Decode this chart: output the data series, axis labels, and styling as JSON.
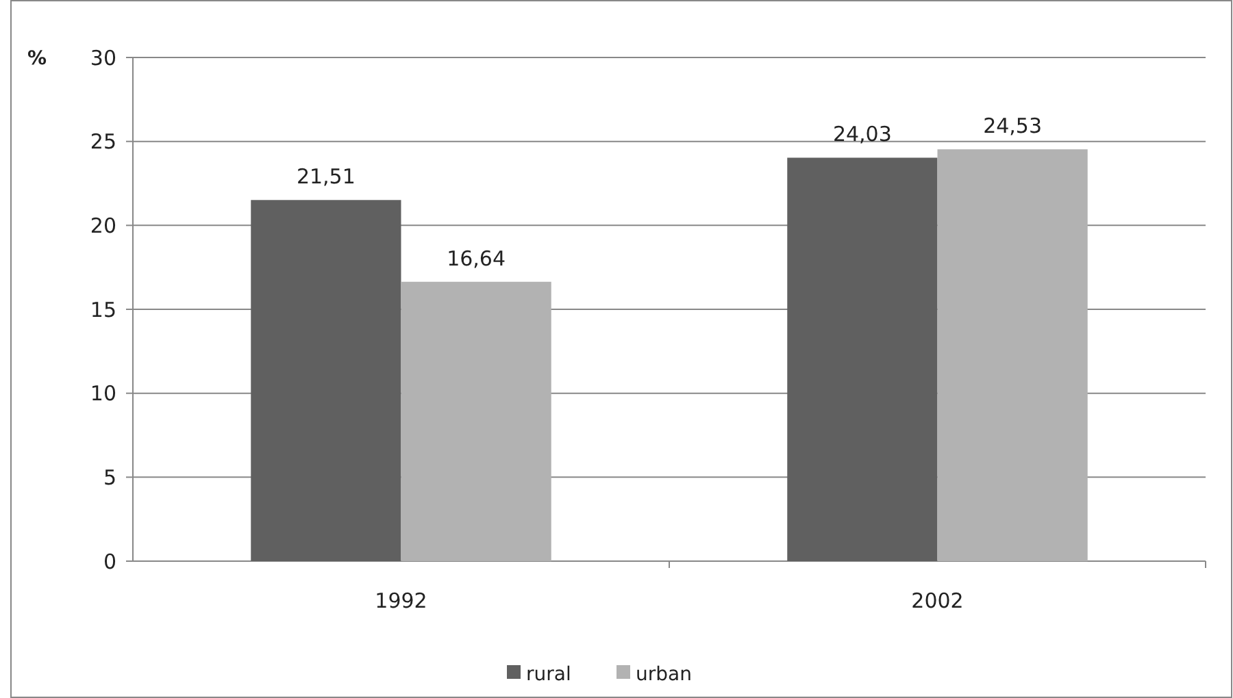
{
  "chart_data": {
    "type": "bar",
    "ylabel": "%",
    "categories": [
      "1992",
      "2002"
    ],
    "series": [
      {
        "name": "rural",
        "color": "#606060",
        "values": [
          21.51,
          24.03
        ],
        "value_labels": [
          "21,51",
          "24,03"
        ]
      },
      {
        "name": "urban",
        "color": "#b2b2b2",
        "values": [
          16.64,
          24.53
        ],
        "value_labels": [
          "16,64",
          "24,53"
        ]
      }
    ],
    "ylim": [
      0,
      30
    ],
    "yticks": [
      0,
      5,
      10,
      15,
      20,
      25,
      30
    ],
    "grid": "y",
    "legend": "bottom"
  }
}
